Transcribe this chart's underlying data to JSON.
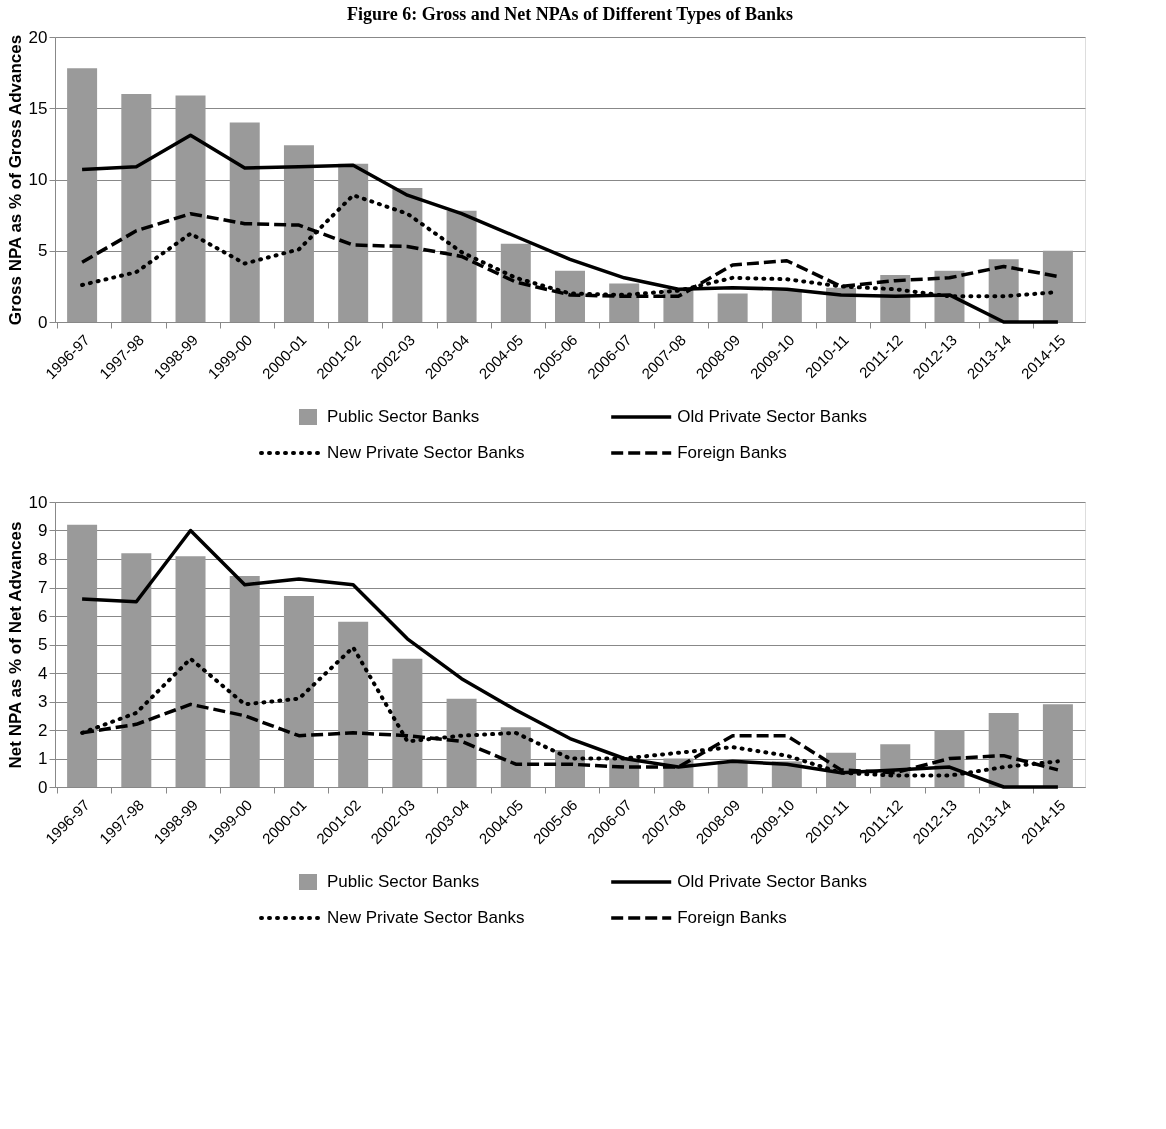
{
  "chart_data": [
    {
      "type": "bar",
      "title": "Figure 6: Gross and Net NPAs of Different Types of Banks",
      "ylabel": "Gross NPA as % of Gross Advances",
      "categories": [
        "1996-97",
        "1997-98",
        "1998-99",
        "1999-00",
        "2000-01",
        "2001-02",
        "2002-03",
        "2003-04",
        "2004-05",
        "2005-06",
        "2006-07",
        "2007-08",
        "2008-09",
        "2009-10",
        "2010-11",
        "2011-12",
        "2012-13",
        "2013-14",
        "2014-15"
      ],
      "ylim": [
        0,
        20
      ],
      "yticks": [
        0,
        5,
        10,
        15,
        20
      ],
      "grid": "y",
      "legend": "bottom",
      "series": [
        {
          "name": "Public Sector Banks",
          "color": "#9a9a9a",
          "values": [
            17.8,
            16.0,
            15.9,
            14.0,
            12.4,
            11.1,
            9.4,
            7.8,
            5.5,
            3.6,
            2.7,
            2.3,
            2.0,
            2.2,
            2.4,
            3.3,
            3.6,
            4.4,
            5.0
          ]
        },
        {
          "name": "Old Private Sector Banks",
          "type": "line",
          "line_style": "solid",
          "color": "#000000",
          "values": [
            10.7,
            10.9,
            13.1,
            10.8,
            10.9,
            11.0,
            8.9,
            7.6,
            6.0,
            4.4,
            3.1,
            2.3,
            2.4,
            2.3,
            1.9,
            1.8,
            1.9,
            0,
            0
          ]
        },
        {
          "name": "New Private Sector Banks",
          "type": "line",
          "line_style": "dotted",
          "color": "#000000",
          "values": [
            2.6,
            3.5,
            6.2,
            4.1,
            5.1,
            8.9,
            7.6,
            4.9,
            3.1,
            2.0,
            1.9,
            2.2,
            3.1,
            3.0,
            2.5,
            2.3,
            1.8,
            1.8,
            2.1
          ]
        },
        {
          "name": "Foreign Banks",
          "type": "line",
          "line_style": "dashed",
          "color": "#000000",
          "values": [
            4.2,
            6.4,
            7.6,
            6.9,
            6.8,
            5.4,
            5.3,
            4.6,
            2.8,
            1.9,
            1.8,
            1.8,
            4.0,
            4.3,
            2.5,
            2.9,
            3.1,
            3.9,
            3.2
          ]
        }
      ]
    },
    {
      "type": "bar",
      "ylabel": "Net NPA as % of Net Advances",
      "categories": [
        "1996-97",
        "1997-98",
        "1998-99",
        "1999-00",
        "2000-01",
        "2001-02",
        "2002-03",
        "2003-04",
        "2004-05",
        "2005-06",
        "2006-07",
        "2007-08",
        "2008-09",
        "2009-10",
        "2010-11",
        "2011-12",
        "2012-13",
        "2013-14",
        "2014-15"
      ],
      "ylim": [
        0,
        10
      ],
      "yticks": [
        0,
        1,
        2,
        3,
        4,
        5,
        6,
        7,
        8,
        9,
        10
      ],
      "grid": "y",
      "legend": "bottom",
      "series": [
        {
          "name": "Public Sector Banks",
          "color": "#9a9a9a",
          "values": [
            9.2,
            8.2,
            8.1,
            7.4,
            6.7,
            5.8,
            4.5,
            3.1,
            2.1,
            1.3,
            1.0,
            1.0,
            0.9,
            0.9,
            1.2,
            1.5,
            2.0,
            2.6,
            2.9
          ]
        },
        {
          "name": "Old Private Sector Banks",
          "type": "line",
          "line_style": "solid",
          "color": "#000000",
          "values": [
            6.6,
            6.5,
            9.0,
            7.1,
            7.3,
            7.1,
            5.2,
            3.8,
            2.7,
            1.7,
            1.0,
            0.7,
            0.9,
            0.8,
            0.5,
            0.6,
            0.7,
            0,
            0
          ]
        },
        {
          "name": "New Private Sector Banks",
          "type": "line",
          "line_style": "dotted",
          "color": "#000000",
          "values": [
            1.9,
            2.6,
            4.5,
            2.9,
            3.1,
            4.9,
            1.6,
            1.8,
            1.9,
            1.0,
            1.0,
            1.2,
            1.4,
            1.1,
            0.5,
            0.4,
            0.4,
            0.7,
            0.9
          ]
        },
        {
          "name": "Foreign Banks",
          "type": "line",
          "line_style": "dashed",
          "color": "#000000",
          "values": [
            1.9,
            2.2,
            2.9,
            2.5,
            1.8,
            1.9,
            1.8,
            1.6,
            0.8,
            0.8,
            0.7,
            0.7,
            1.8,
            1.8,
            0.6,
            0.5,
            1.0,
            1.1,
            0.6
          ]
        }
      ]
    }
  ]
}
